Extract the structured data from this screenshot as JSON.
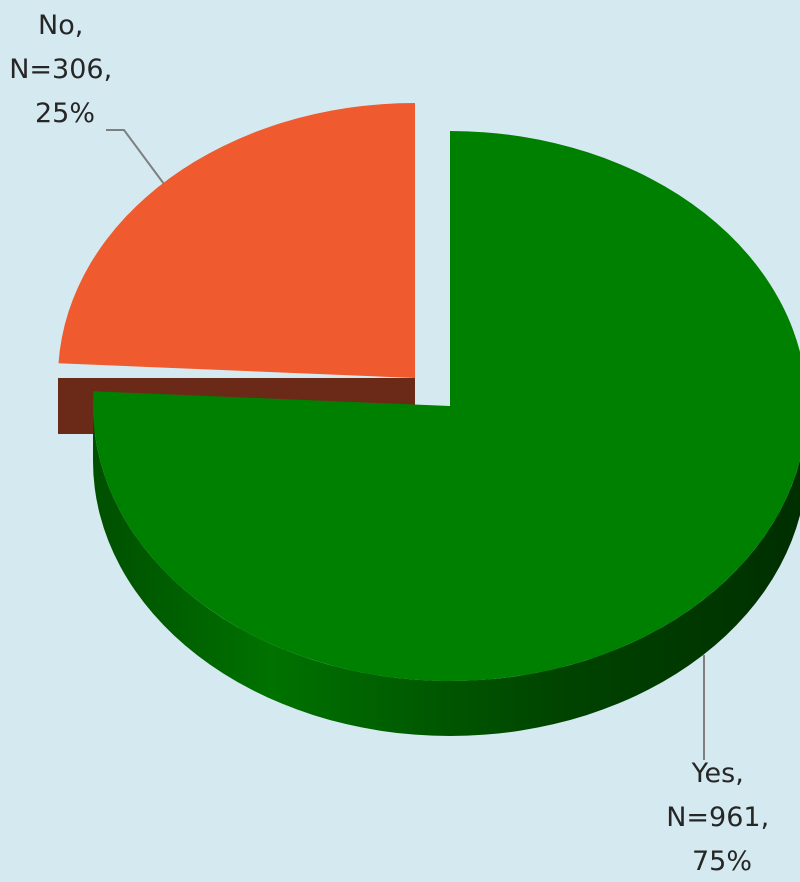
{
  "chart_data": {
    "type": "pie",
    "style": "3d-exploded",
    "background_color": "#d5eaf0",
    "slices": [
      {
        "name": "Yes",
        "n": 961,
        "percent": 75,
        "color": "#008000",
        "side_color": "#005a00",
        "label_lines": [
          "Yes,",
          "N=961,",
          "75%"
        ]
      },
      {
        "name": "No",
        "n": 306,
        "percent": 25,
        "color": "#ef5a2e",
        "side_color": "#6b2a18",
        "label_lines": [
          "No,",
          "N=306,",
          "25%"
        ]
      }
    ]
  }
}
